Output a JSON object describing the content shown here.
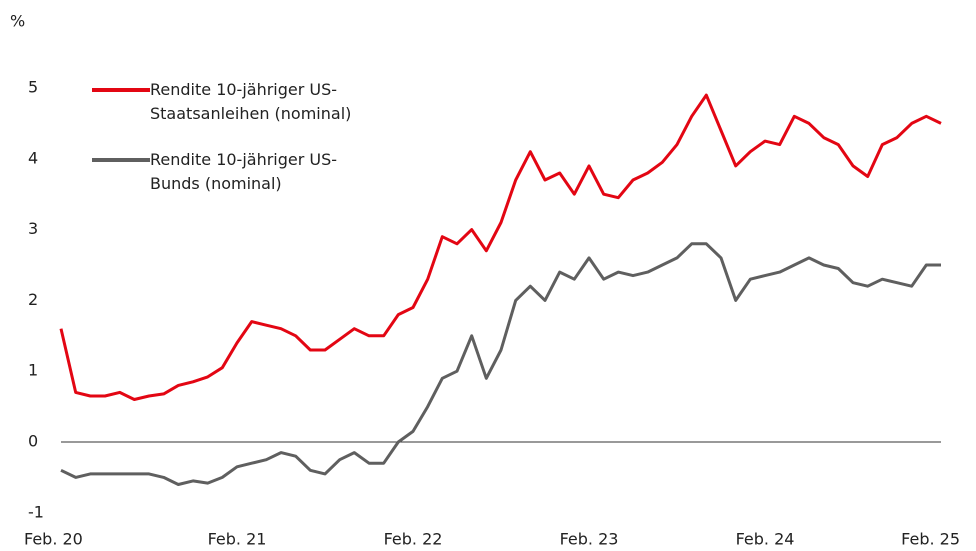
{
  "chart_data": {
    "type": "line",
    "ylabel": "%",
    "categories": [
      "Feb. 20",
      null,
      null,
      null,
      null,
      null,
      null,
      null,
      null,
      null,
      null,
      null,
      "Feb. 21",
      null,
      null,
      null,
      null,
      null,
      null,
      null,
      null,
      null,
      null,
      null,
      "Feb. 22",
      null,
      null,
      null,
      null,
      null,
      null,
      null,
      null,
      null,
      null,
      null,
      "Feb. 23",
      null,
      null,
      null,
      null,
      null,
      null,
      null,
      null,
      null,
      null,
      null,
      "Feb. 24",
      null,
      null,
      null,
      null,
      null,
      null,
      null,
      null,
      null,
      null,
      null,
      "Feb. 25"
    ],
    "series": [
      {
        "name": "Rendite 10-jähriger US-Staatsanleihen (nominal)",
        "color": "#e30613",
        "values": [
          1.6,
          0.7,
          0.65,
          0.65,
          0.7,
          0.6,
          0.65,
          0.68,
          0.8,
          0.85,
          0.92,
          1.05,
          1.4,
          1.7,
          1.65,
          1.6,
          1.5,
          1.3,
          1.3,
          1.45,
          1.6,
          1.5,
          1.5,
          1.8,
          1.9,
          2.3,
          2.9,
          2.8,
          3.0,
          2.7,
          3.1,
          3.7,
          4.1,
          3.7,
          3.8,
          3.5,
          3.9,
          3.5,
          3.45,
          3.7,
          3.8,
          3.95,
          4.2,
          4.6,
          4.9,
          4.4,
          3.9,
          4.1,
          4.25,
          4.2,
          4.6,
          4.5,
          4.3,
          4.2,
          3.9,
          3.75,
          4.2,
          4.3,
          4.5,
          4.6,
          4.5
        ]
      },
      {
        "name": "Rendite 10-jähriger US-Bunds (nominal)",
        "color": "#5f5f5f",
        "values": [
          -0.4,
          -0.5,
          -0.45,
          -0.45,
          -0.45,
          -0.45,
          -0.45,
          -0.5,
          -0.6,
          -0.55,
          -0.58,
          -0.5,
          -0.35,
          -0.3,
          -0.25,
          -0.15,
          -0.2,
          -0.4,
          -0.45,
          -0.25,
          -0.15,
          -0.3,
          -0.3,
          0.0,
          0.15,
          0.5,
          0.9,
          1.0,
          1.5,
          0.9,
          1.3,
          2.0,
          2.2,
          2.0,
          2.4,
          2.3,
          2.6,
          2.3,
          2.4,
          2.35,
          2.4,
          2.5,
          2.6,
          2.8,
          2.8,
          2.6,
          2.0,
          2.3,
          2.35,
          2.4,
          2.5,
          2.6,
          2.5,
          2.45,
          2.25,
          2.2,
          2.3,
          2.25,
          2.2,
          2.5,
          2.5
        ]
      }
    ],
    "ylim": [
      -1,
      5.5
    ],
    "yticks": [
      -1,
      0,
      1,
      2,
      3,
      4,
      5
    ],
    "zero_line": true,
    "legend": "upper left"
  }
}
